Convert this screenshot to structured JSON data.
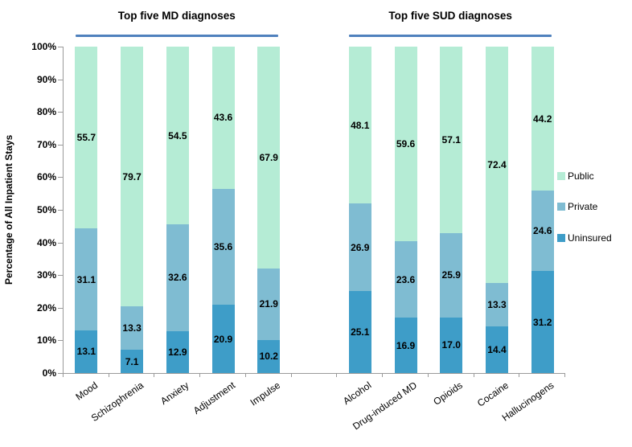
{
  "chart_data": {
    "type": "bar",
    "stacked": true,
    "ylabel": "Percentage of All Inpatient Stays",
    "ylim": [
      0,
      100
    ],
    "yticks": [
      "0%",
      "10%",
      "20%",
      "30%",
      "40%",
      "50%",
      "60%",
      "70%",
      "80%",
      "90%",
      "100%"
    ],
    "groups": [
      {
        "label": "Top five MD diagnoses",
        "categories": [
          "Mood",
          "Schizophrenia",
          "Anxiety",
          "Adjustment",
          "Impulse"
        ]
      },
      {
        "label": "Top five SUD diagnoses",
        "categories": [
          "Alcohol",
          "Drug-induced MD",
          "Opioids",
          "Cocaine",
          "Hallucinogens"
        ]
      }
    ],
    "series": [
      {
        "name": "Uninsured",
        "color": "#3E9DC8",
        "values": [
          13.1,
          7.1,
          12.9,
          20.9,
          10.2,
          25.1,
          16.9,
          17.0,
          14.4,
          31.2
        ]
      },
      {
        "name": "Private",
        "color": "#7FBCD2",
        "values": [
          31.1,
          13.3,
          32.6,
          35.6,
          21.9,
          26.9,
          23.6,
          25.9,
          13.3,
          24.6
        ]
      },
      {
        "name": "Public",
        "color": "#B5ECD5",
        "values": [
          55.7,
          79.7,
          54.5,
          43.6,
          67.9,
          48.1,
          59.6,
          57.1,
          72.4,
          44.2
        ]
      }
    ],
    "legend": {
      "position": "right",
      "items": [
        "Public",
        "Private",
        "Uninsured"
      ]
    },
    "underline_color": "#4F81BD",
    "axis_color": "#9A9A9A",
    "grid": false
  }
}
